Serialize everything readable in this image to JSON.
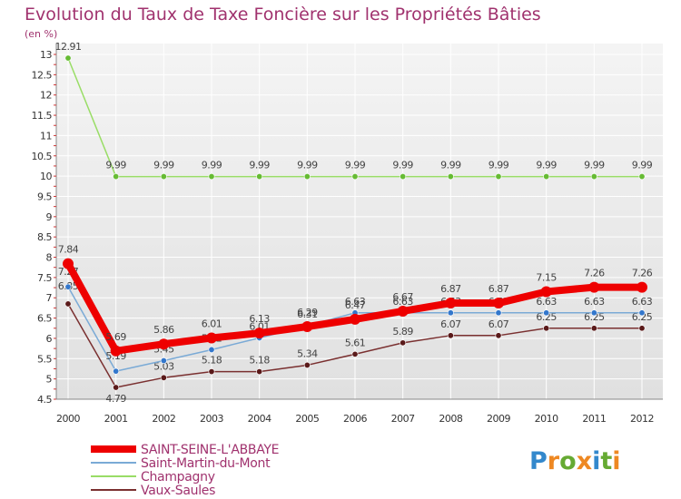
{
  "chart_data": {
    "type": "line",
    "title": "Evolution du Taux de Taxe Foncière sur les Propriétés Bâties",
    "subtitle": "(en %)",
    "x": [
      "2000",
      "2001",
      "2002",
      "2003",
      "2004",
      "2005",
      "2006",
      "2007",
      "2008",
      "2009",
      "2010",
      "2011",
      "2012"
    ],
    "ylim": [
      4.5,
      13
    ],
    "yticks": [
      "4.5",
      "5",
      "5.5",
      "6",
      "6.5",
      "7",
      "7.5",
      "8",
      "8.5",
      "9",
      "9.5",
      "10",
      "10.5",
      "11",
      "11.5",
      "12",
      "12.5",
      "13"
    ],
    "series": [
      {
        "name": "Champagny",
        "color": "#99dd66",
        "marker": "#66bb33",
        "values": [
          12.91,
          9.99,
          9.99,
          9.99,
          9.99,
          9.99,
          9.99,
          9.99,
          9.99,
          9.99,
          9.99,
          9.99,
          9.99
        ],
        "labels": [
          "12.91",
          "9.99",
          "9.99",
          "9.99",
          "9.99",
          "9.99",
          "9.99",
          "9.99",
          "9.99",
          "9.99",
          "9.99",
          "9.99",
          "9.99"
        ]
      },
      {
        "name": "Vaux-Saules",
        "color": "#7a3030",
        "marker": "#5a1a1a",
        "values": [
          6.85,
          4.79,
          5.03,
          5.18,
          5.18,
          5.34,
          5.61,
          5.89,
          6.07,
          6.07,
          6.25,
          6.25,
          6.25
        ],
        "labels": [
          "6.85",
          "4.79",
          "5.03",
          "5.18",
          "5.18",
          "5.34",
          "5.61",
          "5.89",
          "6.07",
          "6.07",
          "6.25",
          "6.25",
          "6.25"
        ]
      },
      {
        "name": "Saint-Martin-du-Mont",
        "color": "#7aaad6",
        "marker": "#3377cc",
        "values": [
          7.27,
          5.19,
          5.45,
          5.72,
          6.01,
          6.31,
          6.63,
          6.63,
          6.63,
          6.63,
          6.63,
          6.63,
          6.63
        ],
        "labels": [
          "7.27",
          "5.19",
          "5.45",
          "5.72",
          "6.01",
          "6.31",
          "6.63",
          "6.63",
          "6.63",
          "6.63",
          "6.63",
          "6.63",
          "6.63"
        ]
      },
      {
        "name": "SAINT-SEINE-L'ABBAYE",
        "color": "#ee0000",
        "marker": "#ee0000",
        "thick": true,
        "values": [
          7.84,
          5.69,
          5.86,
          6.01,
          6.13,
          6.29,
          6.47,
          6.67,
          6.87,
          6.87,
          7.15,
          7.26,
          7.26
        ],
        "labels": [
          "7.84",
          "5.69",
          "5.86",
          "6.01",
          "6.13",
          "6.29",
          "6.47",
          "6.67",
          "6.87",
          "6.87",
          "7.15",
          "7.26",
          "7.26"
        ]
      }
    ],
    "legend": [
      "SAINT-SEINE-L'ABBAYE",
      "Saint-Martin-du-Mont",
      "Champagny",
      "Vaux-Saules"
    ]
  },
  "logo": {
    "text": "Proxiti"
  }
}
